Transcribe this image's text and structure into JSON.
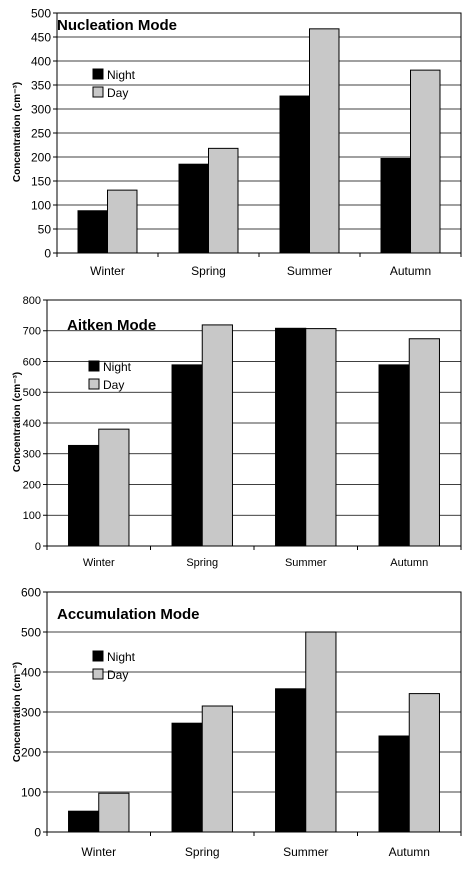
{
  "chart_data": [
    {
      "type": "bar",
      "title": "Nucleation Mode",
      "xlabel": "",
      "ylabel": "Concentration (cm⁻³)",
      "categories": [
        "Winter",
        "Spring",
        "Summer",
        "Autumn"
      ],
      "series": [
        {
          "name": "Night",
          "color": "#000000",
          "values": [
            88,
            185,
            327,
            197
          ]
        },
        {
          "name": "Day",
          "color": "#c8c8c8",
          "values": [
            131,
            218,
            467,
            381
          ]
        }
      ],
      "ylim": [
        0,
        500
      ],
      "yticks": [
        "0",
        "50",
        "100",
        "150",
        "200",
        "250",
        "300",
        "350",
        "400",
        "450",
        "500"
      ],
      "grid": true,
      "legend_position": "upper-left"
    },
    {
      "type": "bar",
      "title": "Aitken Mode",
      "xlabel": "",
      "ylabel": "Concentration (cm⁻³)",
      "categories": [
        "Winter",
        "Spring",
        "Summer",
        "Autumn"
      ],
      "series": [
        {
          "name": "Night",
          "color": "#000000",
          "values": [
            327,
            589,
            708,
            589
          ]
        },
        {
          "name": "Day",
          "color": "#c8c8c8",
          "values": [
            380,
            719,
            707,
            674
          ]
        }
      ],
      "ylim": [
        0,
        800
      ],
      "yticks": [
        "0",
        "100",
        "200",
        "300",
        "400",
        "500",
        "600",
        "700",
        "800"
      ],
      "grid": true,
      "legend_position": "upper-left"
    },
    {
      "type": "bar",
      "title": "Accumulation Mode",
      "xlabel": "",
      "ylabel": "Concentration (cm⁻³)",
      "categories": [
        "Winter",
        "Spring",
        "Summer",
        "Autumn"
      ],
      "series": [
        {
          "name": "Night",
          "color": "#000000",
          "values": [
            52,
            272,
            358,
            240
          ]
        },
        {
          "name": "Day",
          "color": "#c8c8c8",
          "values": [
            97,
            315,
            500,
            346
          ]
        }
      ],
      "ylim": [
        0,
        600
      ],
      "yticks": [
        "0",
        "100",
        "200",
        "300",
        "400",
        "500",
        "600"
      ],
      "grid": true,
      "legend_position": "upper-left"
    }
  ]
}
